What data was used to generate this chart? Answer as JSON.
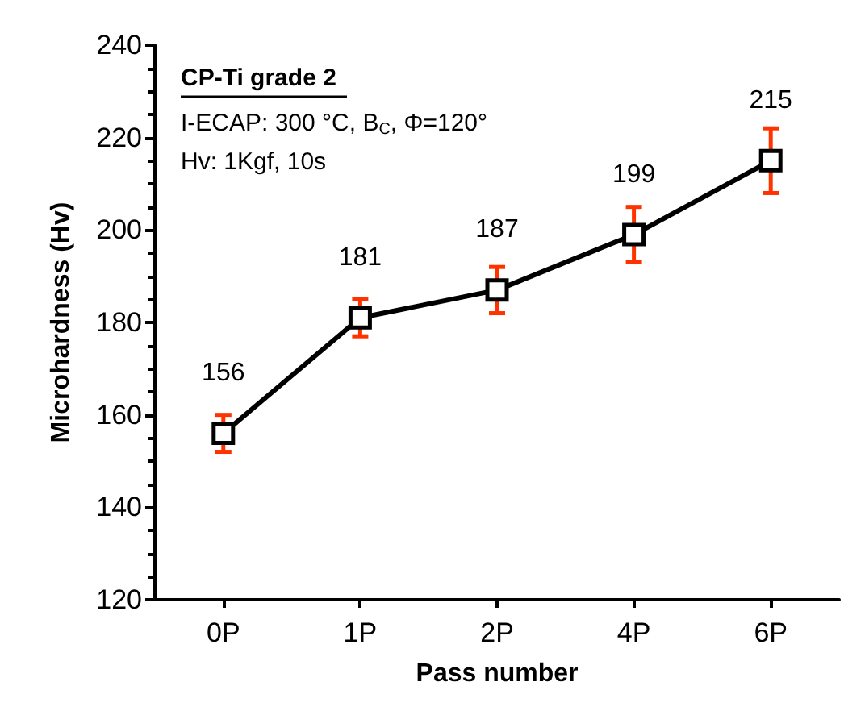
{
  "chart_data": {
    "type": "line",
    "xlabel": "Pass number",
    "ylabel": "Microhardness (Hv)",
    "categories": [
      "0P",
      "1P",
      "2P",
      "4P",
      "6P"
    ],
    "series": [
      {
        "color": "#000000",
        "values": [
          156,
          181,
          187,
          199,
          215
        ],
        "errors": [
          4,
          4,
          5,
          6,
          7
        ]
      }
    ],
    "ylim": [
      120,
      240
    ],
    "yticks": [
      120,
      140,
      160,
      180,
      200,
      220,
      240
    ],
    "grid": false,
    "legend": false,
    "marker": "square",
    "line_style": "solid",
    "data_labels": true,
    "annotations": [
      "CP-Ti grade 2",
      "I-ECAP: 300 °C, B$_{C}$, Φ=120°",
      "Hv: 1Kgf, 10s"
    ]
  }
}
